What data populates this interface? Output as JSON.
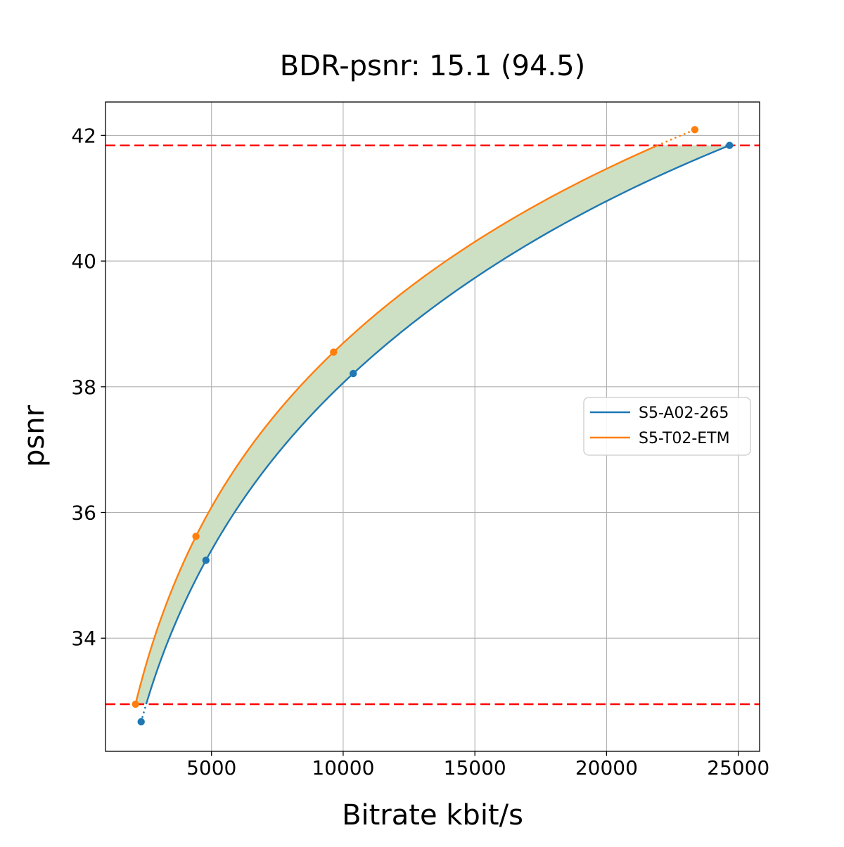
{
  "title": "BDR-psnr: 15.1 (94.5)",
  "chart_data": {
    "type": "line",
    "title": "BDR-psnr: 15.1 (94.5)",
    "xlabel": "Bitrate kbit/s",
    "ylabel": "psnr",
    "xlim": [
      976,
      25810
    ],
    "ylim": [
      32.2,
      42.53
    ],
    "x_ticks": [
      5000,
      10000,
      15000,
      20000,
      25000
    ],
    "x_tick_labels": [
      "5000",
      "10000",
      "15000",
      "20000",
      "25000"
    ],
    "y_ticks": [
      34,
      36,
      38,
      40,
      42
    ],
    "y_tick_labels": [
      "34",
      "36",
      "38",
      "40",
      "42"
    ],
    "grid": true,
    "grid_color": "#b0b0b0",
    "legend_position": "center-right",
    "series": [
      {
        "name": "S5-A02-265",
        "color": "#1f77b4",
        "bitrate": [
          2330,
          4790,
          10380,
          24670
        ],
        "psnr": [
          32.67,
          35.24,
          38.21,
          41.84
        ]
      },
      {
        "name": "S5-T02-ETM",
        "color": "#ff7f0e",
        "bitrate": [
          2115,
          4410,
          9635,
          23350
        ],
        "psnr": [
          32.95,
          35.62,
          38.55,
          42.09
        ]
      }
    ],
    "bd_interval": {
      "psnr_low": 32.95,
      "psnr_high": 41.84,
      "line_color": "#ff0000",
      "line_style": "dashed"
    },
    "fill_between_color": "#cde0c4",
    "interpolation": "pchip-on-log-bitrate"
  }
}
